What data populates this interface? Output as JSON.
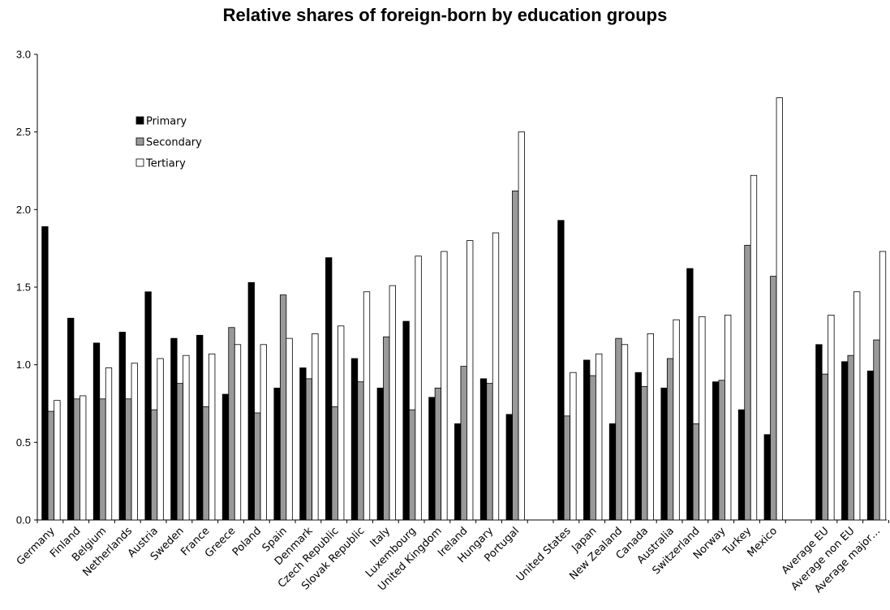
{
  "chart_data": {
    "type": "bar",
    "title": "Relative shares of foreign-born by education groups",
    "xlabel": "",
    "ylabel": "",
    "ylim": [
      0,
      3.0
    ],
    "yticks": [
      "0.0",
      "0.5",
      "1.0",
      "1.5",
      "2.0",
      "2.5",
      "3.0"
    ],
    "grid": false,
    "legend_position": "top-left",
    "categories": [
      "Germany",
      "Finland",
      "Belgium",
      "Netherlands",
      "Austria",
      "Sweden",
      "France",
      "Greece",
      "Poland",
      "Spain",
      "Denmark",
      "Czech Republic",
      "Slovak Republic",
      "Italy",
      "Luxembourg",
      "United Kingdom",
      "Ireland",
      "Hungary",
      "Portugal",
      "",
      "United States",
      "Japan",
      "New Zealand",
      "Canada",
      "Australia",
      "Switzerland",
      "Norway",
      "Turkey",
      "Mexico",
      "",
      "Average EU",
      "Average non EU",
      "Average major…"
    ],
    "series": [
      {
        "name": "Primary",
        "color": "#000000",
        "values": [
          1.89,
          1.3,
          1.14,
          1.21,
          1.47,
          1.17,
          1.19,
          0.81,
          1.53,
          0.85,
          0.98,
          1.69,
          1.04,
          0.85,
          1.28,
          0.79,
          0.62,
          0.91,
          0.68,
          null,
          1.93,
          1.03,
          0.62,
          0.95,
          0.85,
          1.62,
          0.89,
          0.71,
          0.55,
          null,
          1.13,
          1.02,
          0.96
        ]
      },
      {
        "name": "Secondary",
        "color": "#999999",
        "values": [
          0.7,
          0.78,
          0.78,
          0.78,
          0.71,
          0.88,
          0.73,
          1.24,
          0.69,
          1.45,
          0.91,
          0.73,
          0.89,
          1.18,
          0.71,
          0.85,
          0.99,
          0.88,
          2.12,
          null,
          0.67,
          0.93,
          1.17,
          0.86,
          1.04,
          0.62,
          0.9,
          1.77,
          1.57,
          null,
          0.94,
          1.06,
          1.16
        ]
      },
      {
        "name": "Tertiary",
        "color": "#ffffff",
        "values": [
          0.77,
          0.8,
          0.98,
          1.01,
          1.04,
          1.06,
          1.07,
          1.13,
          1.13,
          1.17,
          1.2,
          1.25,
          1.47,
          1.51,
          1.7,
          1.73,
          1.8,
          1.85,
          2.5,
          null,
          0.95,
          1.07,
          1.13,
          1.2,
          1.29,
          1.31,
          1.32,
          2.22,
          2.72,
          null,
          1.32,
          1.47,
          1.73
        ]
      }
    ]
  }
}
